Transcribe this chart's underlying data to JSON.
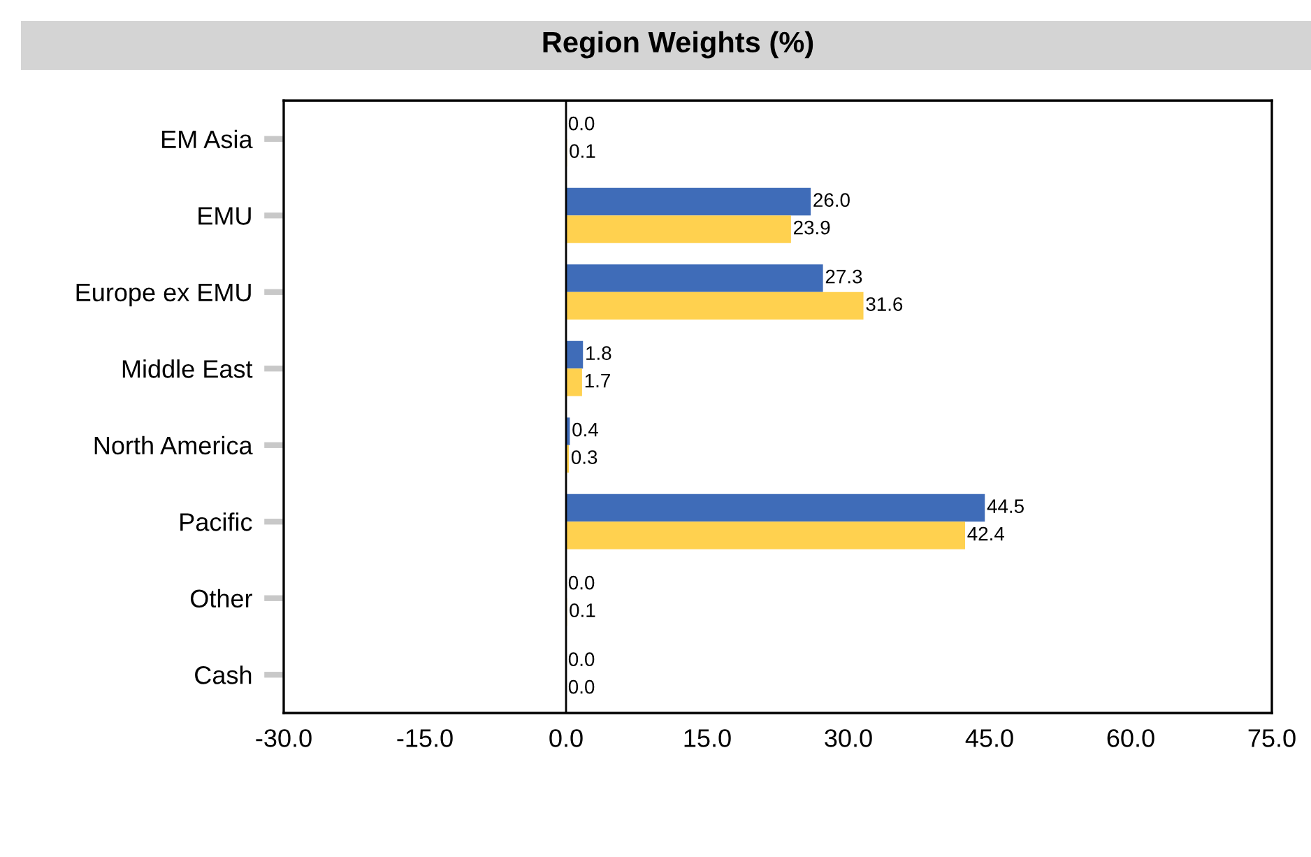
{
  "chart_data": {
    "type": "bar",
    "orientation": "horizontal",
    "title": "Region Weights (%)",
    "categories": [
      "EM Asia",
      "EMU",
      "Europe ex EMU",
      "Middle East",
      "North America",
      "Pacific",
      "Other",
      "Cash"
    ],
    "series": [
      {
        "color": "#3f6cb8",
        "values": [
          0.0,
          26.0,
          27.3,
          1.8,
          0.4,
          44.5,
          0.0,
          0.0
        ],
        "value_labels": [
          "0.0",
          "26.0",
          "27.3",
          "1.8",
          "0.4",
          "44.5",
          "0.0",
          "0.0"
        ]
      },
      {
        "color": "#ffd14f",
        "values": [
          0.1,
          23.9,
          31.6,
          1.7,
          0.3,
          42.4,
          0.1,
          0.0
        ],
        "value_labels": [
          "0.1",
          "23.9",
          "31.6",
          "1.7",
          "0.3",
          "42.4",
          "0.1",
          "0.0"
        ]
      }
    ],
    "xlim": [
      -30,
      75
    ],
    "xticks": [
      {
        "value": -30,
        "label": "-30.0"
      },
      {
        "value": -15,
        "label": "-15.0"
      },
      {
        "value": 0,
        "label": "0.0"
      },
      {
        "value": 15,
        "label": "15.0"
      },
      {
        "value": 30,
        "label": "30.0"
      },
      {
        "value": 45,
        "label": "45.0"
      },
      {
        "value": 60,
        "label": "60.0"
      },
      {
        "value": 75,
        "label": "75.0"
      }
    ],
    "legend": false
  }
}
